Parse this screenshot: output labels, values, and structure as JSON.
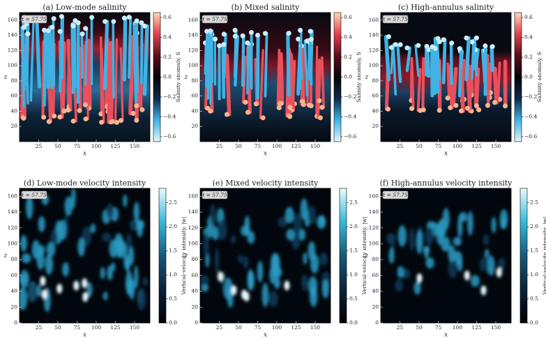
{
  "chart_data": [
    {
      "type": "heatmap",
      "title": "(a) Low-mode salinity",
      "xlabel": "x",
      "ylabel": "z",
      "annotation": "t = 57.75",
      "xlim": [
        0,
        170
      ],
      "ylim": [
        0,
        170
      ],
      "xticks": [
        25,
        50,
        75,
        100,
        125,
        150
      ],
      "yticks": [
        20,
        40,
        60,
        80,
        100,
        120,
        140,
        160
      ],
      "colorbar": {
        "label": "Salinity anomaly, S",
        "lim": [
          -0.65,
          0.65
        ],
        "colors": [
          "#e3f5fb",
          "#3fb3e4",
          "#0d2a4a",
          "#050508",
          "#5a0d1c",
          "#e0414f",
          "#fdd8b5"
        ],
        "ticks": [
          {
            "value": -0.6,
            "label": "−0.6"
          },
          {
            "value": -0.4,
            "label": "−0.4"
          },
          {
            "value": -0.2,
            "label": "−0.2"
          },
          {
            "value": 0,
            "label": "0.0"
          },
          0.2,
          0.4,
          0.6
        ]
      }
    },
    {
      "type": "heatmap",
      "title": "(b) Mixed salinity",
      "xlabel": "x",
      "ylabel": "z",
      "annotation": "t = 57.75",
      "xlim": [
        0,
        170
      ],
      "ylim": [
        0,
        170
      ],
      "xticks": [
        25,
        50,
        75,
        100,
        125,
        150
      ],
      "yticks": [
        20,
        40,
        60,
        80,
        100,
        120,
        140,
        160
      ],
      "colorbar": {
        "label": "Salinity anomaly, S",
        "lim": [
          -0.65,
          0.65
        ],
        "colors": [
          "#e3f5fb",
          "#3fb3e4",
          "#0d2a4a",
          "#050508",
          "#5a0d1c",
          "#e0414f",
          "#fdd8b5"
        ],
        "ticks": [
          {
            "value": -0.6,
            "label": "−0.6"
          },
          {
            "value": -0.4,
            "label": "−0.4"
          },
          {
            "value": -0.2,
            "label": "−0.2"
          },
          {
            "value": 0,
            "label": "0.0"
          },
          0.2,
          0.4,
          0.6
        ]
      }
    },
    {
      "type": "heatmap",
      "title": "(c) High-annulus salinity",
      "xlabel": "x",
      "ylabel": "z",
      "annotation": "t = 57.75",
      "xlim": [
        0,
        170
      ],
      "ylim": [
        0,
        170
      ],
      "xticks": [
        25,
        50,
        75,
        100,
        125,
        150
      ],
      "yticks": [
        20,
        40,
        60,
        80,
        100,
        120,
        140,
        160
      ],
      "colorbar": {
        "label": "Salinity anomaly, S",
        "lim": [
          -0.65,
          0.65
        ],
        "colors": [
          "#e3f5fb",
          "#3fb3e4",
          "#0d2a4a",
          "#050508",
          "#5a0d1c",
          "#e0414f",
          "#fdd8b5"
        ],
        "ticks": [
          {
            "value": -0.6,
            "label": "−0.6"
          },
          {
            "value": -0.4,
            "label": "−0.4"
          },
          {
            "value": -0.2,
            "label": "−0.2"
          },
          {
            "value": 0,
            "label": "0.0"
          },
          0.2,
          0.4,
          0.6
        ]
      }
    },
    {
      "type": "heatmap",
      "title": "(d) Low-mode velocity intensity",
      "xlabel": "x",
      "ylabel": "z",
      "annotation": "t = 57.75",
      "xlim": [
        0,
        170
      ],
      "ylim": [
        0,
        170
      ],
      "xticks": [
        25,
        50,
        75,
        100,
        125,
        150
      ],
      "yticks": [
        0,
        20,
        40,
        60,
        80,
        100,
        120,
        140,
        160
      ],
      "colorbar": {
        "label": "Vertical-velocity intensity, |w|",
        "lim": [
          0,
          2.8
        ],
        "colors": [
          "#000000",
          "#0a2238",
          "#17597a",
          "#36b8d8",
          "#e8fbff"
        ],
        "ticks": [
          {
            "value": 0,
            "label": "0.0"
          },
          0.5,
          {
            "value": 1,
            "label": "1.0"
          },
          1.5,
          {
            "value": 2,
            "label": "2.0"
          },
          2.5
        ]
      }
    },
    {
      "type": "heatmap",
      "title": "(e) Mixed velocity intensity",
      "xlabel": "x",
      "ylabel": "z",
      "annotation": "t = 57.75",
      "xlim": [
        0,
        170
      ],
      "ylim": [
        0,
        170
      ],
      "xticks": [
        25,
        50,
        75,
        100,
        125,
        150
      ],
      "yticks": [
        0,
        20,
        40,
        60,
        80,
        100,
        120,
        140,
        160
      ],
      "colorbar": {
        "label": "Vertical-velocity intensity, |w|",
        "lim": [
          0,
          2.8
        ],
        "colors": [
          "#000000",
          "#0a2238",
          "#17597a",
          "#36b8d8",
          "#e8fbff"
        ],
        "ticks": [
          {
            "value": 0,
            "label": "0.0"
          },
          0.5,
          {
            "value": 1,
            "label": "1.0"
          },
          1.5,
          {
            "value": 2,
            "label": "2.0"
          },
          2.5
        ]
      }
    },
    {
      "type": "heatmap",
      "title": "(f) High-annulus velocity intensity",
      "xlabel": "x",
      "ylabel": "z",
      "annotation": "t = 57.75",
      "xlim": [
        0,
        170
      ],
      "ylim": [
        0,
        170
      ],
      "xticks": [
        25,
        50,
        75,
        100,
        125,
        150
      ],
      "yticks": [
        0,
        20,
        40,
        60,
        80,
        100,
        120,
        140,
        160
      ],
      "colorbar": {
        "label": "Vertical-velocity intensity, |w|",
        "lim": [
          0,
          2.8
        ],
        "colors": [
          "#000000",
          "#0a2238",
          "#17597a",
          "#36b8d8",
          "#e8fbff"
        ],
        "ticks": [
          {
            "value": 0,
            "label": "0.0"
          },
          0.5,
          {
            "value": 1,
            "label": "1.0"
          },
          1.5,
          {
            "value": 2,
            "label": "2.0"
          },
          2.5
        ]
      }
    }
  ]
}
